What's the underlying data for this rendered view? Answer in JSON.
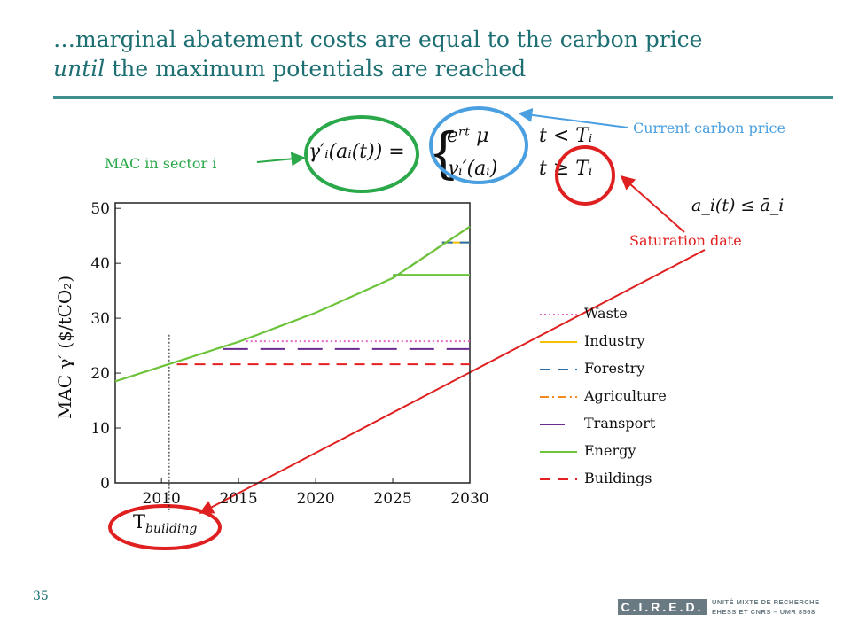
{
  "slide": {
    "title_line1": "…marginal abatement costs are equal to the carbon price",
    "title_line2_italic": "until",
    "title_line2_rest": " the maximum potentials are reached",
    "page_number": "35"
  },
  "annotations": {
    "mac_sector": "MAC in sector i",
    "current_price": "Current carbon price",
    "saturation": "Saturation date",
    "t_building_main": "T",
    "t_building_sub": "building",
    "constraint_formula": "a_i(t) ≤ ā_i"
  },
  "formula": {
    "lhs": "γ′ᵢ(aᵢ(t)) =",
    "case1_expr": "eʳᵗ μ",
    "case1_cond": "t < Tᵢ",
    "case2_expr": "γᵢ′(aᵢ)",
    "case2_cond": "t ≥ Tᵢ"
  },
  "logo": {
    "name": "C.I.R.E.D.",
    "line1": "UNITÉ MIXTE DE RECHERCHE",
    "line2": "EHESS ET CNRS – UMR 8568"
  },
  "colors": {
    "title": "#1d6f73",
    "waste": "#e667c8",
    "industry": "#f2c200",
    "forestry": "#2a6fa8",
    "agriculture": "#f28a1c",
    "transport": "#6a2c91",
    "energy": "#6cc43a",
    "buildings": "#e62020",
    "annotation_green": "#2aa84a",
    "annotation_blue": "#4a9fe0",
    "annotation_red": "#e02020"
  },
  "chart_data": {
    "type": "line",
    "xlim": [
      2007,
      2030
    ],
    "ylim": [
      0,
      51
    ],
    "xticks": [
      2010,
      2015,
      2020,
      2025,
      2030
    ],
    "yticks": [
      0,
      10,
      20,
      30,
      40,
      50
    ],
    "ylabel": "MAC γ′ ($/tCO₂)",
    "legend_position": "right",
    "carbon_price": {
      "x": [
        2007,
        2010,
        2015,
        2020,
        2025,
        2030
      ],
      "y": [
        18.5,
        21.2,
        25.7,
        31.0,
        37.3,
        46.7
      ]
    },
    "saturation_date_line_x": 2010.5,
    "series": [
      {
        "name": "Waste",
        "saturation_year": 2015.5,
        "plateau": 25.8,
        "style": "dotted"
      },
      {
        "name": "Industry",
        "saturation_year": 2028.2,
        "plateau": 43.8,
        "style": "solid"
      },
      {
        "name": "Forestry",
        "saturation_year": 2028.2,
        "plateau": 43.8,
        "style": "dashed"
      },
      {
        "name": "Agriculture",
        "saturation_year": 2030,
        "plateau": 46.7,
        "style": "dashdot"
      },
      {
        "name": "Transport",
        "saturation_year": 2014,
        "plateau": 24.4,
        "style": "longdash"
      },
      {
        "name": "Energy",
        "saturation_year": 2025,
        "plateau": 37.9,
        "style": "solid"
      },
      {
        "name": "Buildings",
        "saturation_year": 2011,
        "plateau": 21.6,
        "style": "dashed"
      }
    ]
  }
}
